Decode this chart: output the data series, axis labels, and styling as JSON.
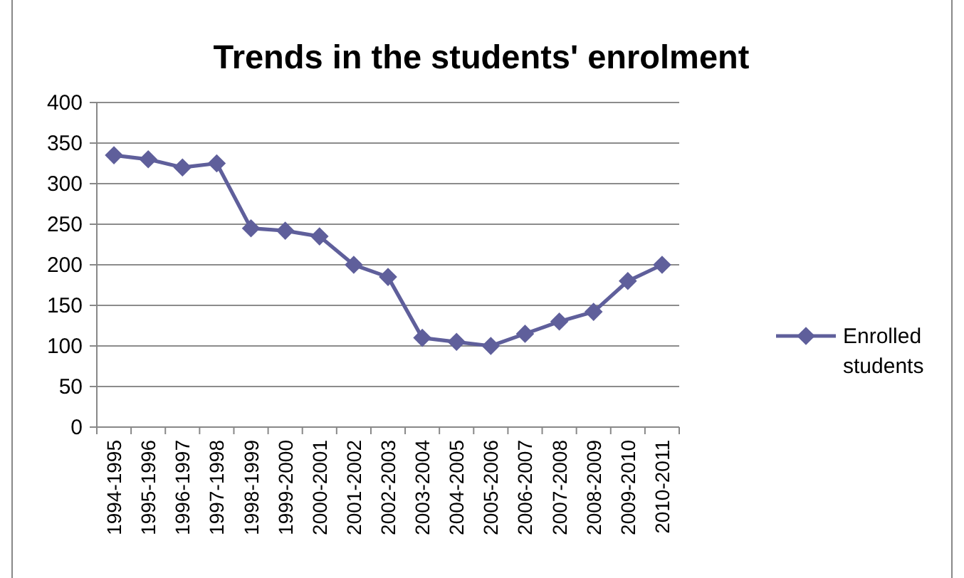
{
  "chart_data": {
    "type": "line",
    "title": "Trends in the students' enrolment",
    "categories": [
      "1994-1995",
      "1995-1996",
      "1996-1997",
      "1997-1998",
      "1998-1999",
      "1999-2000",
      "2000-2001",
      "2001-2002",
      "2002-2003",
      "2003-2004",
      "2004-2005",
      "2005-2006",
      "2006-2007",
      "2007-2008",
      "2008-2009",
      "2009-2010",
      "2010-2011"
    ],
    "series": [
      {
        "name": "Enrolled students",
        "color": "#5f5f9b",
        "values": [
          335,
          330,
          320,
          325,
          245,
          242,
          235,
          200,
          185,
          110,
          105,
          100,
          115,
          130,
          142,
          180,
          200
        ]
      }
    ],
    "ylim": [
      0,
      400
    ],
    "yticks": [
      0,
      50,
      100,
      150,
      200,
      250,
      300,
      350,
      400
    ],
    "grid": "y",
    "legend": "right",
    "marker": "diamond",
    "line_style": "solid"
  }
}
